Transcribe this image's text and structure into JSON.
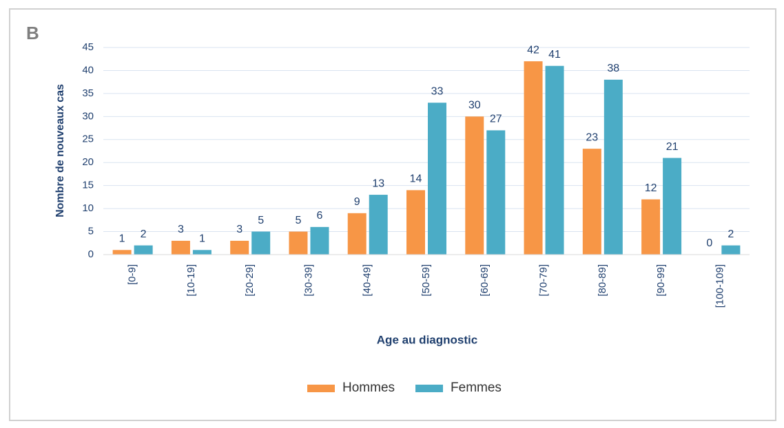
{
  "chart_data": {
    "type": "bar",
    "panel_label": "B",
    "x_label": "Age au diagnostic",
    "y_label": "Nombre de nouveaux cas",
    "categories": [
      "[0-9]",
      "[10-19]",
      "[20-29]",
      "[30-39]",
      "[40-49]",
      "[50-59]",
      "[60-69]",
      "[70-79]",
      "[80-89]",
      "[90-99]",
      "[100-109]"
    ],
    "series": [
      {
        "name": "Hommes",
        "color": "#f79646",
        "values": [
          1,
          3,
          3,
          5,
          9,
          14,
          30,
          42,
          23,
          12,
          0
        ]
      },
      {
        "name": "Femmes",
        "color": "#4bacc6",
        "values": [
          2,
          1,
          5,
          6,
          13,
          33,
          27,
          41,
          38,
          21,
          2
        ]
      }
    ],
    "ylim": [
      0,
      45
    ],
    "yticks": [
      0,
      5,
      10,
      15,
      20,
      25,
      30,
      35,
      40,
      45
    ],
    "grid": true,
    "legend": "bottom"
  }
}
